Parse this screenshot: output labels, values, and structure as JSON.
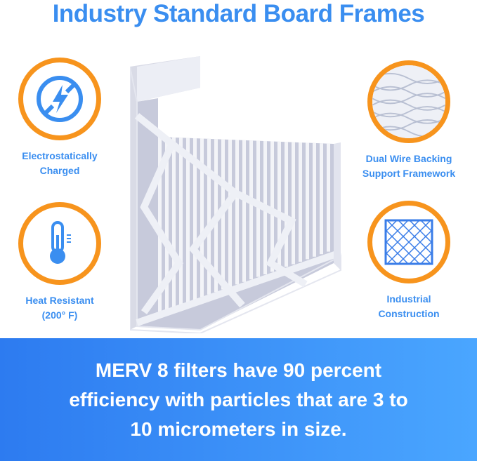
{
  "title": "Industry Standard Board Frames",
  "features": [
    {
      "icon": "electrostatic-icon",
      "label_line1": "Electrostatically",
      "label_line2": "Charged"
    },
    {
      "icon": "thermometer-icon",
      "label_line1": "Heat Resistant",
      "label_line2": "(200° F)"
    },
    {
      "icon": "wire-mesh-icon",
      "label_line1": "Dual Wire Backing",
      "label_line2": "Support Framework"
    },
    {
      "icon": "grid-construction-icon",
      "label_line1": "Industrial",
      "label_line2": "Construction"
    }
  ],
  "banner": {
    "text": "MERV 8 filters have 90 percent efficiency with particles that are 3 to 10 micrometers in size."
  },
  "colors": {
    "accent_blue": "#3a8ef0",
    "ring_orange": "#f7941d",
    "banner_start": "#2d7bf0",
    "banner_end": "#4aa6ff"
  }
}
